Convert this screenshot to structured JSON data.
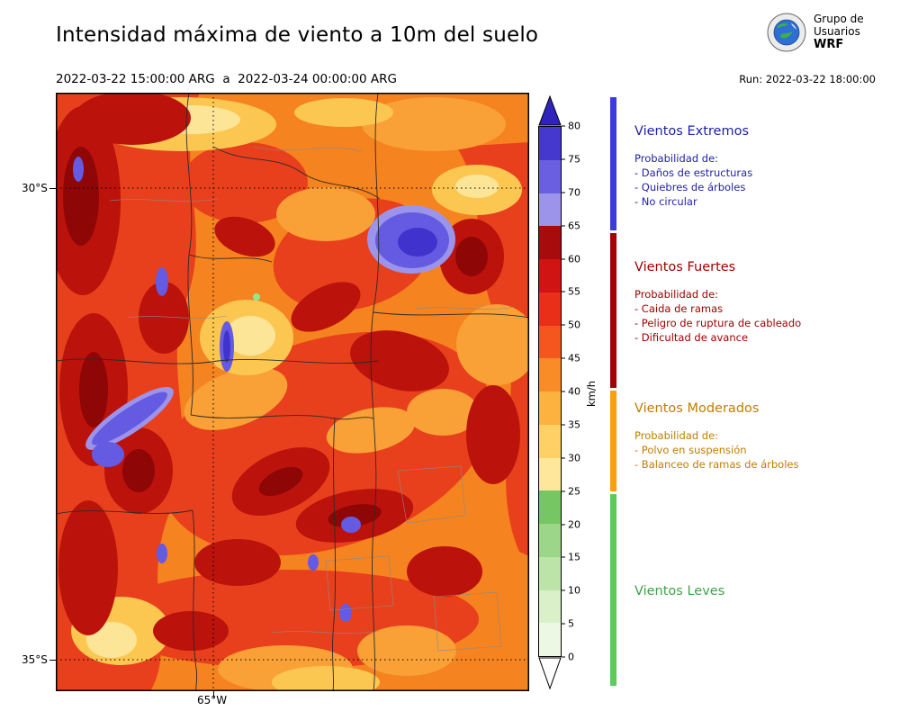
{
  "header": {
    "title": "Intensidad máxima de viento a 10m del suelo",
    "period": "2022-03-22 15:00:00 ARG  a  2022-03-24 00:00:00 ARG",
    "run": "Run: 2022-03-22 18:00:00",
    "logo": {
      "line1": "Grupo de",
      "line2": "Usuarios",
      "line3": "WRF"
    }
  },
  "map_axes": {
    "lat_top": "30°S",
    "lat_bottom": "35°S",
    "lon": "65°W"
  },
  "colorbar": {
    "unit": "km/h",
    "ticks_top_to_bottom": [
      "80",
      "75",
      "70",
      "65",
      "60",
      "55",
      "50",
      "45",
      "40",
      "35",
      "30",
      "25",
      "20",
      "15",
      "10",
      "5",
      "0"
    ],
    "segment_colors_top_to_bottom": [
      "#4538cf",
      "#6a5fe0",
      "#9b94ea",
      "#a80b0b",
      "#cf1413",
      "#e92f17",
      "#f4561e",
      "#fa8c28",
      "#fdb13e",
      "#fed066",
      "#fee79a",
      "#76c763",
      "#9cd689",
      "#bce4a8",
      "#d9f0c8",
      "#edf8e4"
    ],
    "over_color": "#2f23bb",
    "under_color": "#ffffff"
  },
  "legend_sections": [
    {
      "title": "Vientos Extremos",
      "color": "#1f1fa8",
      "bar_color": "#3c3cd8",
      "prob_header": "Probabilidad de:",
      "items": [
        "- Daños de estructuras",
        "- Quiebres de árboles",
        "- No circular"
      ]
    },
    {
      "title": "Vientos Fuertes",
      "color": "#a00000",
      "bar_color": "#a00505",
      "prob_header": "Probabilidad de:",
      "items": [
        "- Caida de ramas",
        "- Peligro de ruptura de cableado",
        "- Dificultad de avance"
      ]
    },
    {
      "title": "Vientos Moderados",
      "color": "#c07d00",
      "bar_color": "#ff9d15",
      "prob_header": "Probabilidad de:",
      "items": [
        "- Polvo en suspensión",
        "- Balanceo de ramas de árboles"
      ]
    },
    {
      "title": "Vientos Leves",
      "color": "#3fa24b",
      "bar_color": "#59cc59",
      "prob_header": "",
      "items": []
    }
  ],
  "chart_data": {
    "type": "heatmap",
    "title": "Intensidad máxima de viento a 10m del suelo",
    "period_start": "2022-03-22 15:00:00 ARG",
    "period_end": "2022-03-24 00:00:00 ARG",
    "model_run": "2022-03-22 18:00:00",
    "units": "km/h",
    "scale_ticks": [
      0,
      5,
      10,
      15,
      20,
      25,
      30,
      35,
      40,
      45,
      50,
      55,
      60,
      65,
      70,
      75,
      80
    ],
    "categories": [
      {
        "name": "Vientos Leves",
        "range_kmh": [
          0,
          25
        ]
      },
      {
        "name": "Vientos Moderados",
        "range_kmh": [
          25,
          40
        ]
      },
      {
        "name": "Vientos Fuertes",
        "range_kmh": [
          40,
          65
        ]
      },
      {
        "name": "Vientos Extremos",
        "range_kmh": [
          65,
          80
        ]
      }
    ],
    "map_extent": {
      "lat_ticks": [
        "30°S",
        "35°S"
      ],
      "lon_ticks": [
        "65°W"
      ]
    }
  }
}
